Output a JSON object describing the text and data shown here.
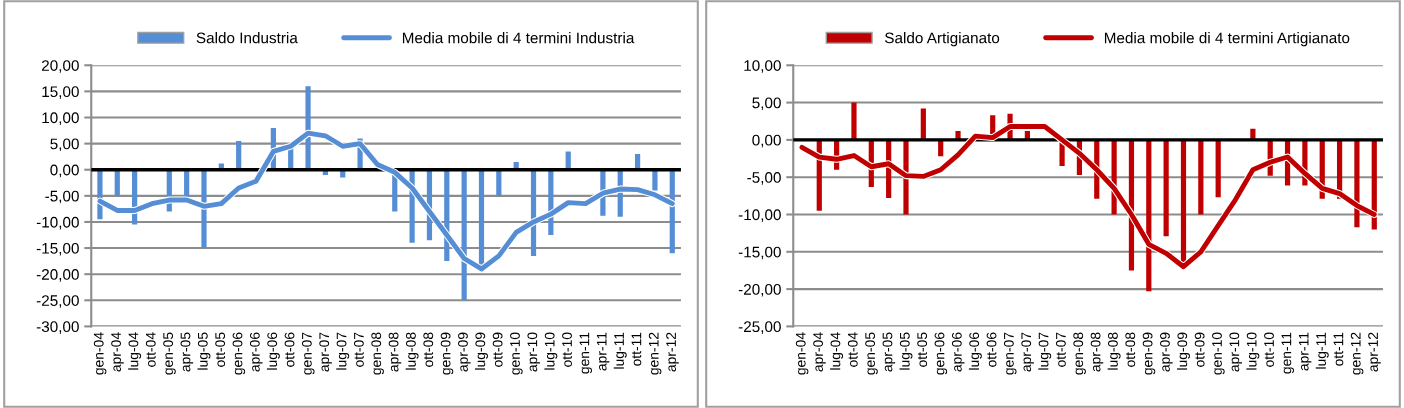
{
  "chart_data": [
    {
      "type": "bar",
      "categories": [
        "gen-04",
        "apr-04",
        "lug-04",
        "ott-04",
        "gen-05",
        "apr-05",
        "lug-05",
        "ott-05",
        "gen-06",
        "apr-06",
        "lug-06",
        "ott-06",
        "gen-07",
        "apr-07",
        "lug-07",
        "ott-07",
        "gen-08",
        "apr-08",
        "lug-08",
        "ott-08",
        "gen-09",
        "apr-09",
        "lug-09",
        "ott-09",
        "gen-10",
        "apr-10",
        "lug-10",
        "ott-10",
        "gen-11",
        "apr-11",
        "lug-11",
        "ott-11",
        "gen-12",
        "apr-12"
      ],
      "series": [
        {
          "name": "Saldo Industria",
          "color": "#558ed5",
          "values": [
            -9.5,
            -5,
            -10.5,
            0,
            -8,
            -5.5,
            -15,
            1.2,
            5.5,
            0,
            8,
            4.5,
            16,
            -1,
            -1.5,
            6,
            0,
            -8,
            -14,
            -13.5,
            -17.5,
            -25,
            -19.5,
            -5,
            1.5,
            -16.5,
            -12.5,
            3.5,
            0,
            -8.8,
            -9,
            3,
            -4,
            -16
          ]
        },
        {
          "name": "Media mobile di 4 termini Industria",
          "type": "line",
          "color": "#558ed5",
          "values": [
            -6,
            -7.8,
            -7.8,
            -6.5,
            -5.8,
            -5.8,
            -7,
            -6.5,
            -3.5,
            -2.2,
            3.5,
            4.5,
            7,
            6.5,
            4.5,
            5,
            1,
            -0.5,
            -3.5,
            -8,
            -12.5,
            -17,
            -19,
            -16.5,
            -12,
            -10,
            -8.5,
            -6.3,
            -6.5,
            -4.5,
            -3.7,
            -3.8,
            -4.8,
            -6.5
          ]
        }
      ],
      "ylim": [
        -30,
        20
      ],
      "yticks": [
        {
          "value": -30,
          "label": "-30,00"
        },
        {
          "value": -25,
          "label": "-25,00"
        },
        {
          "value": -20,
          "label": "-20,00"
        },
        {
          "value": -15,
          "label": "-15,00"
        },
        {
          "value": -10,
          "label": "-10,00"
        },
        {
          "value": -5,
          "label": "-5,00"
        },
        {
          "value": 0,
          "label": "0,00"
        },
        {
          "value": 5,
          "label": "5,00"
        },
        {
          "value": 10,
          "label": "10,00"
        },
        {
          "value": 15,
          "label": "15,00"
        },
        {
          "value": 20,
          "label": "20,00"
        }
      ],
      "ref_lines": [
        {
          "axis": "y",
          "value": 0,
          "color": "#000000"
        }
      ],
      "grid": "y",
      "legend": "top",
      "marker": "none",
      "line_style": "solid"
    },
    {
      "type": "bar",
      "categories": [
        "gen-04",
        "apr-04",
        "lug-04",
        "ott-04",
        "gen-05",
        "apr-05",
        "lug-05",
        "ott-05",
        "gen-06",
        "apr-06",
        "lug-06",
        "ott-06",
        "gen-07",
        "apr-07",
        "lug-07",
        "ott-07",
        "gen-08",
        "apr-08",
        "lug-08",
        "ott-08",
        "gen-09",
        "apr-09",
        "lug-09",
        "ott-09",
        "gen-10",
        "apr-10",
        "lug-10",
        "ott-10",
        "gen-11",
        "apr-11",
        "lug-11",
        "ott-11",
        "gen-12",
        "apr-12"
      ],
      "series": [
        {
          "name": "Saldo Artigianato",
          "color": "#c00000",
          "values": [
            0,
            -9.5,
            -4,
            5,
            -6.3,
            -7.8,
            -10,
            4.2,
            -2.2,
            1.2,
            0,
            3.3,
            3.5,
            1.2,
            0,
            -3.5,
            -4.7,
            -7.9,
            -10,
            -17.5,
            -20.3,
            -12.9,
            -16.6,
            -10,
            -7.7,
            0,
            1.5,
            -4.8,
            -6.1,
            -6.1,
            -7.9,
            -7.9,
            -11.7,
            -12
          ]
        },
        {
          "name": "Media mobile di 4 termini Artigianato",
          "type": "line",
          "color": "#c00000",
          "values": [
            -1,
            -2.3,
            -2.6,
            -2.1,
            -3.6,
            -3.2,
            -4.8,
            -4.9,
            -4,
            -2,
            0.5,
            0.3,
            1.8,
            1.8,
            1.8,
            0,
            -1.8,
            -4,
            -6.5,
            -10,
            -14,
            -15.2,
            -17,
            -15,
            -11.5,
            -8,
            -4,
            -3,
            -2.3,
            -4.5,
            -6.5,
            -7.2,
            -8.8,
            -10
          ]
        }
      ],
      "ylim": [
        -25,
        10
      ],
      "yticks": [
        {
          "value": -25,
          "label": "-25,00"
        },
        {
          "value": -20,
          "label": "-20,00"
        },
        {
          "value": -15,
          "label": "-15,00"
        },
        {
          "value": -10,
          "label": "-10,00"
        },
        {
          "value": -5,
          "label": "-5,00"
        },
        {
          "value": 0,
          "label": "0,00"
        },
        {
          "value": 5,
          "label": "5,00"
        },
        {
          "value": 10,
          "label": "10,00"
        }
      ],
      "ref_lines": [
        {
          "axis": "y",
          "value": 0,
          "color": "#000000"
        }
      ],
      "grid": "y",
      "legend": "top",
      "marker": "none",
      "line_style": "solid"
    }
  ]
}
